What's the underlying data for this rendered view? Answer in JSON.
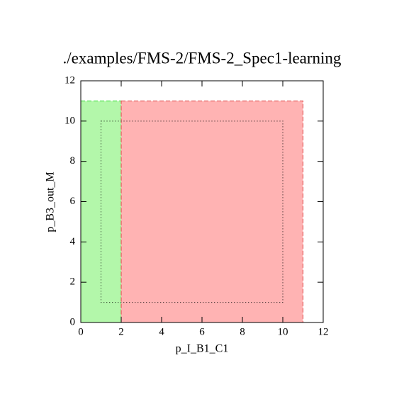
{
  "chart_data": {
    "type": "region",
    "title": "./examples/FMS-2/FMS-2_Spec1-learning",
    "xlabel": "p_I_B1_C1",
    "ylabel": "p_B3_out_M",
    "xlim": [
      0,
      12
    ],
    "ylim": [
      0,
      12
    ],
    "xticks": [
      0,
      2,
      4,
      6,
      8,
      10,
      12
    ],
    "yticks": [
      0,
      2,
      4,
      6,
      8,
      10,
      12
    ],
    "regions": [
      {
        "x": [
          0,
          2
        ],
        "y": [
          0,
          11
        ],
        "color": "#b3f7aa",
        "edge": "#33dd33",
        "style": "dashed"
      },
      {
        "x": [
          2,
          11
        ],
        "y": [
          0,
          11
        ],
        "color": "#ffb3b3",
        "edge": "#dd4444",
        "style": "dashed"
      },
      {
        "x": [
          1,
          10
        ],
        "y": [
          1,
          10
        ],
        "color": "none",
        "edge": "#000000",
        "style": "dotted"
      }
    ]
  }
}
